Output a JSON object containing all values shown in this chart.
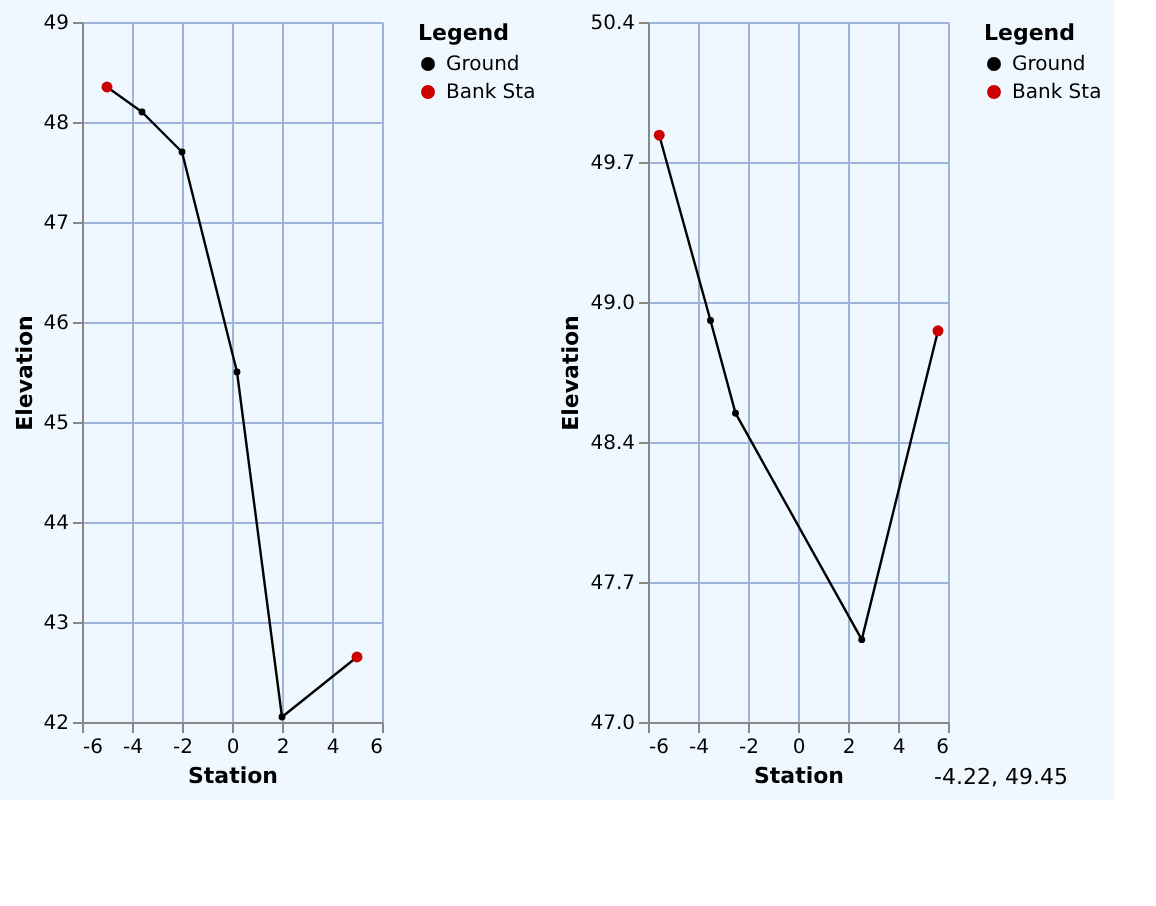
{
  "chart_data": [
    {
      "type": "line",
      "xlabel": "Station",
      "ylabel": "Elevation",
      "legend_title": "Legend",
      "legend": "right",
      "grid": true,
      "line_style": "solid",
      "xlim": [
        -6,
        6
      ],
      "xticks": [
        -6,
        -4,
        -2,
        0,
        2,
        4,
        6
      ],
      "ylim": [
        42,
        49
      ],
      "yticks": [
        42,
        43,
        44,
        45,
        46,
        47,
        48,
        49
      ],
      "series": [
        {
          "name": "Ground",
          "color": "#000000",
          "marker": "circle",
          "x": [
            -5,
            -3.6,
            -2,
            0.2,
            2,
            5
          ],
          "values": [
            48.35,
            48.1,
            47.7,
            45.5,
            42.05,
            42.65
          ]
        },
        {
          "name": "Bank Sta",
          "type": "scatter",
          "color": "#cc0000",
          "marker": "circle",
          "x": [
            -5,
            5
          ],
          "values": [
            48.35,
            42.65
          ]
        }
      ]
    },
    {
      "type": "line",
      "xlabel": "Station",
      "ylabel": "Elevation",
      "legend_title": "Legend",
      "legend": "right",
      "grid": true,
      "line_style": "solid",
      "xlim": [
        -6,
        6
      ],
      "xticks": [
        -6,
        -4,
        -2,
        0,
        2,
        4,
        6
      ],
      "ylim": [
        47.0,
        50.4
      ],
      "yticks": [
        {
          "value": 47.0,
          "label": "47.0"
        },
        {
          "value": 47.68,
          "label": "47.7"
        },
        {
          "value": 48.36,
          "label": "48.4"
        },
        {
          "value": 49.04,
          "label": "49.0"
        },
        {
          "value": 49.72,
          "label": "49.7"
        },
        {
          "value": 50.4,
          "label": "50.4"
        }
      ],
      "annotations": [
        "-4.22, 49.45"
      ],
      "series": [
        {
          "name": "Ground",
          "color": "#000000",
          "marker": "circle",
          "x": [
            -5.55,
            -3.5,
            -2.5,
            2.55,
            5.6
          ],
          "values": [
            49.85,
            48.95,
            48.5,
            47.4,
            48.9
          ]
        },
        {
          "name": "Bank Sta",
          "type": "scatter",
          "color": "#cc0000",
          "marker": "circle",
          "x": [
            -5.55,
            5.6
          ],
          "values": [
            49.85,
            48.9
          ]
        }
      ]
    }
  ]
}
